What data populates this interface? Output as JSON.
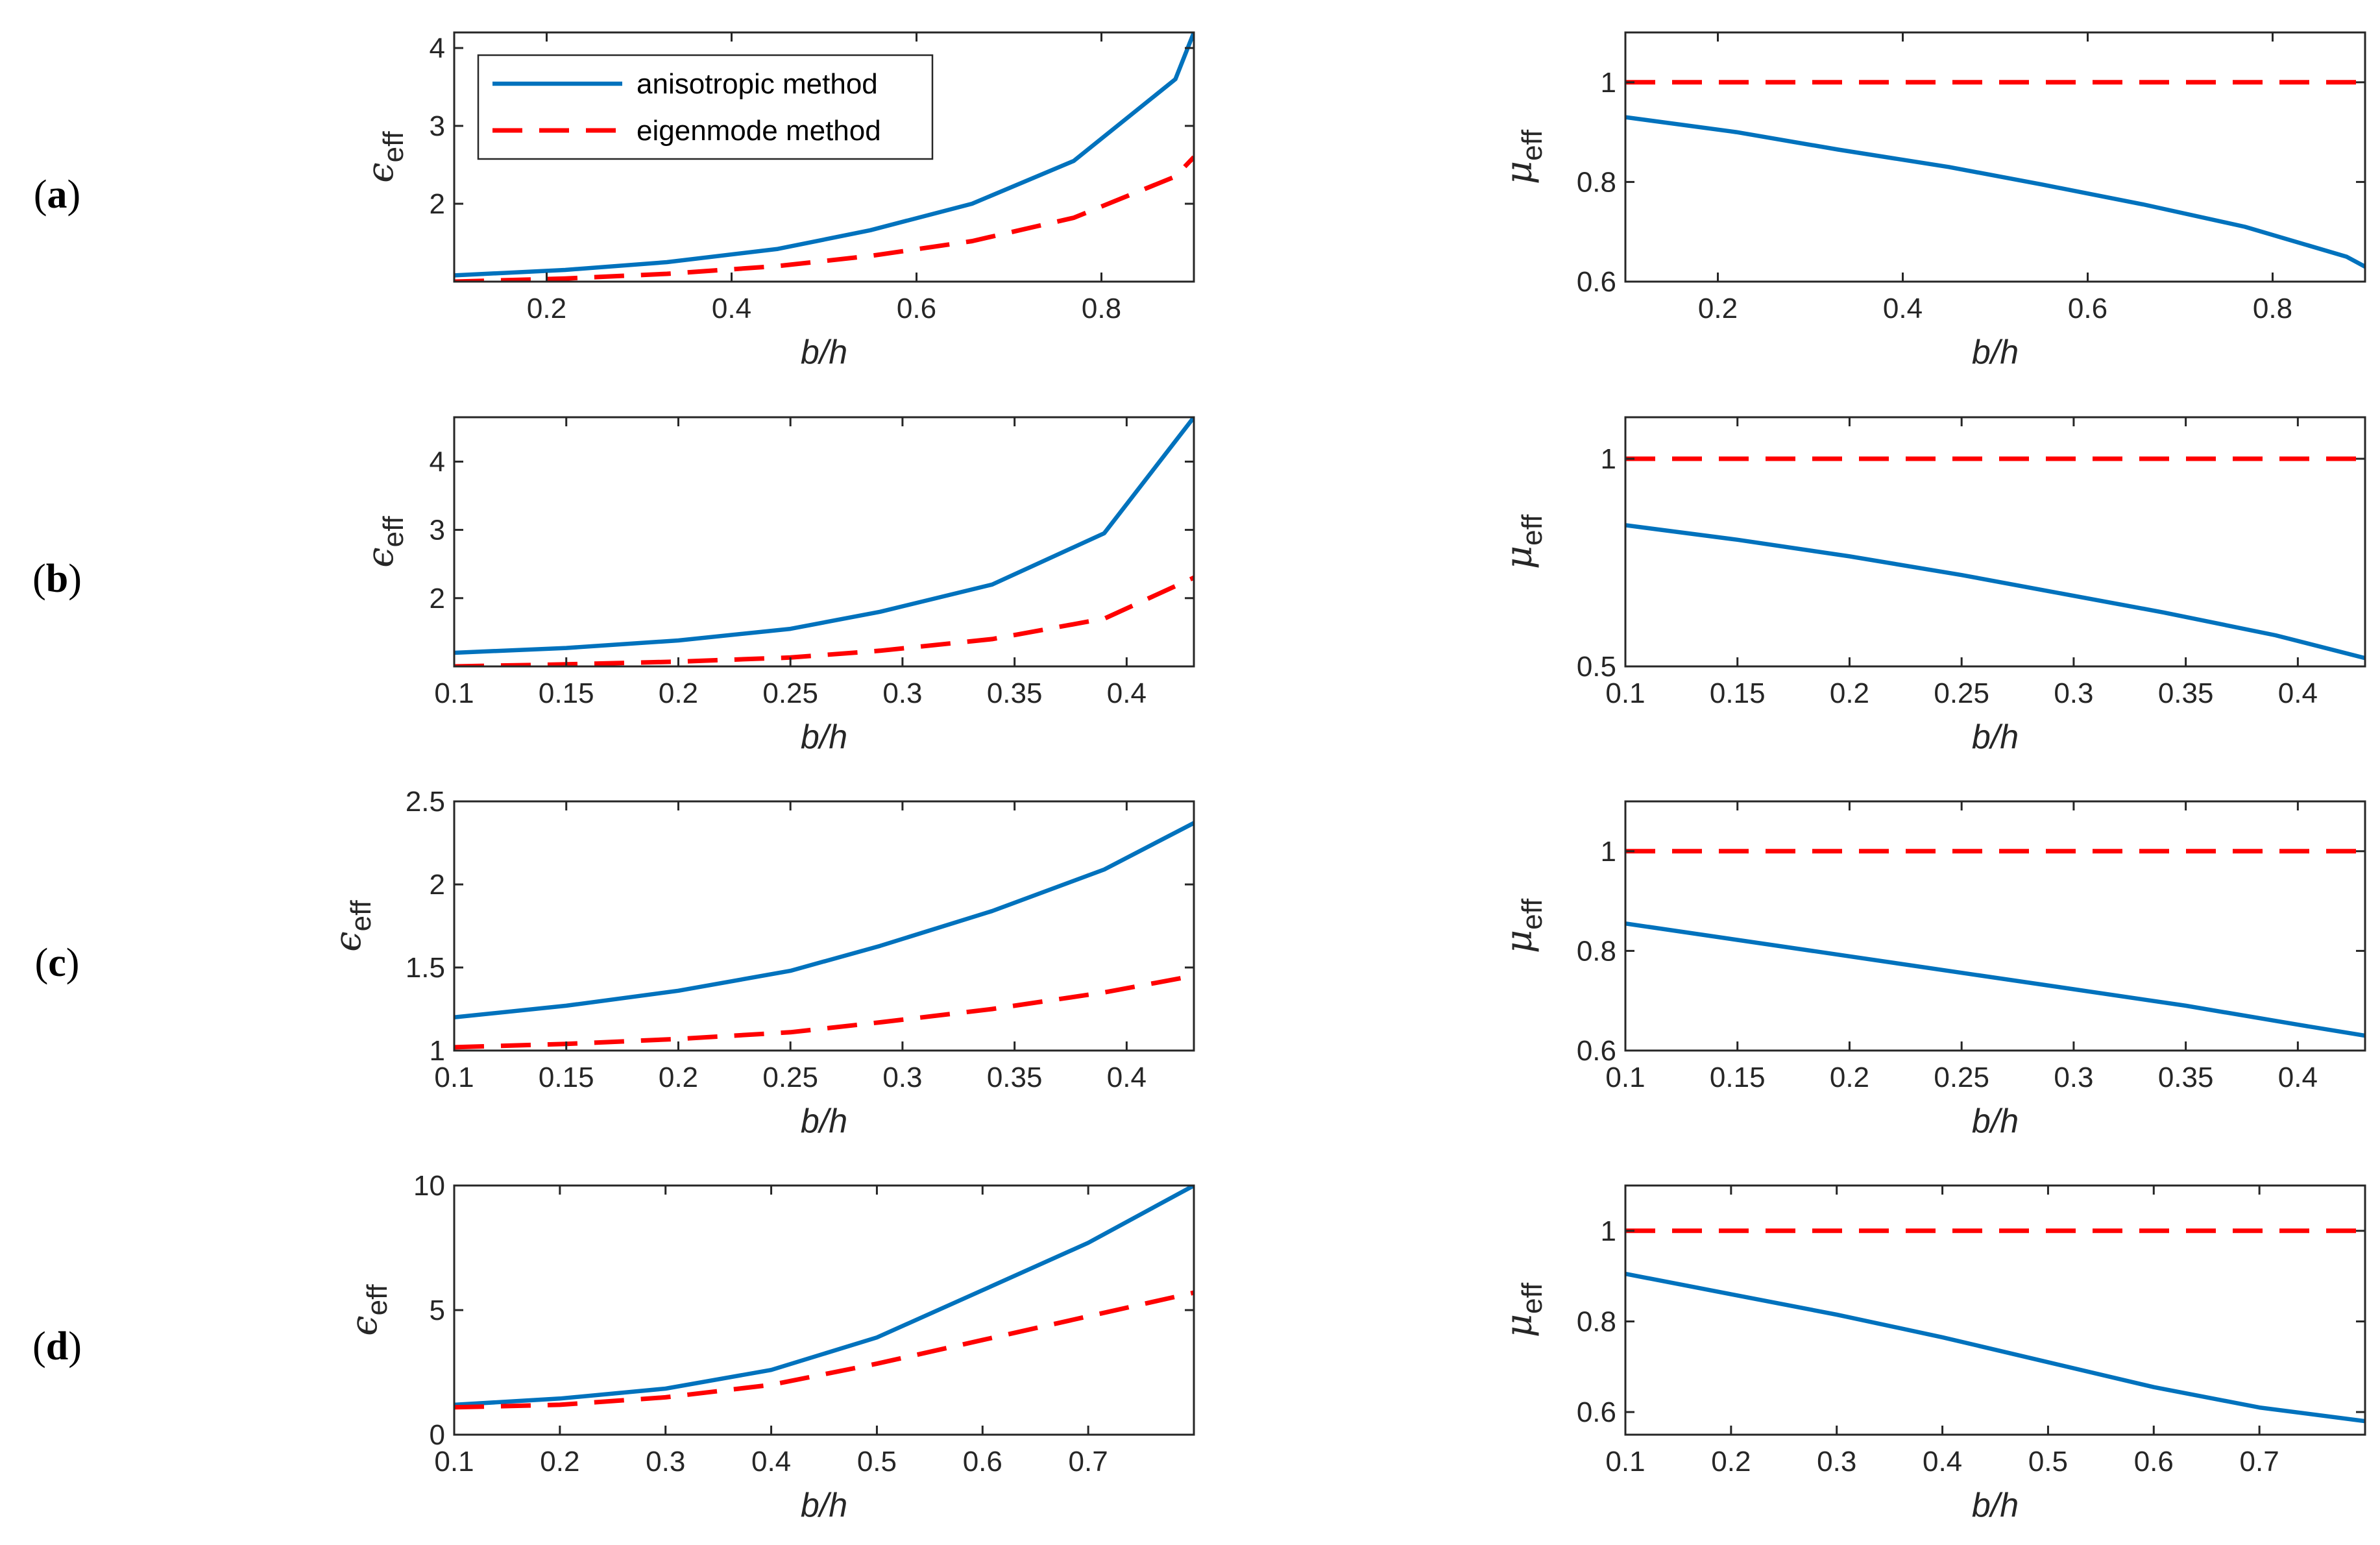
{
  "figure": {
    "panel_labels": [
      "(a)",
      "(b)",
      "(c)",
      "(d)"
    ],
    "legend": {
      "entries": [
        "anisotropic method",
        "eigenmode method"
      ]
    },
    "colors": {
      "anisotropic": "#0072BD",
      "eigenmode": "#FF0000"
    }
  },
  "chart_data": [
    {
      "id": "a-eps",
      "type": "line",
      "row": "(a)",
      "xlabel": "b/h",
      "ylabel_main": "ϵ",
      "ylabel_sub": "eff",
      "xlim": [
        0.1,
        0.9
      ],
      "ylim": [
        1,
        4.2
      ],
      "xticks": [
        "0.2",
        "0.4",
        "0.6",
        "0.8"
      ],
      "xtick_values": [
        0.2,
        0.4,
        0.6,
        0.8
      ],
      "yticks": [
        "2",
        "3",
        "4"
      ],
      "ytick_values": [
        2,
        3,
        4
      ],
      "series": [
        {
          "name": "anisotropic method",
          "x": [
            0.1,
            0.22,
            0.33,
            0.45,
            0.55,
            0.66,
            0.77,
            0.88,
            0.9
          ],
          "y": [
            1.08,
            1.15,
            1.25,
            1.42,
            1.66,
            2.0,
            2.55,
            3.6,
            4.2
          ]
        },
        {
          "name": "eigenmode method",
          "x": [
            0.1,
            0.22,
            0.33,
            0.45,
            0.55,
            0.66,
            0.77,
            0.88,
            0.9
          ],
          "y": [
            1.0,
            1.04,
            1.1,
            1.2,
            1.33,
            1.52,
            1.82,
            2.35,
            2.6
          ]
        }
      ]
    },
    {
      "id": "a-mu",
      "type": "line",
      "row": "(a)",
      "xlabel": "b/h",
      "ylabel_main": "μ",
      "ylabel_sub": "eff",
      "xlim": [
        0.1,
        0.9
      ],
      "ylim": [
        0.6,
        1.1
      ],
      "xticks": [
        "0.2",
        "0.4",
        "0.6",
        "0.8"
      ],
      "xtick_values": [
        0.2,
        0.4,
        0.6,
        0.8
      ],
      "yticks": [
        "0.6",
        "0.8",
        "1"
      ],
      "ytick_values": [
        0.6,
        0.8,
        1.0
      ],
      "series": [
        {
          "name": "anisotropic method",
          "x": [
            0.1,
            0.22,
            0.33,
            0.45,
            0.55,
            0.66,
            0.77,
            0.88,
            0.9
          ],
          "y": [
            0.93,
            0.9,
            0.865,
            0.83,
            0.795,
            0.755,
            0.71,
            0.65,
            0.63
          ]
        },
        {
          "name": "eigenmode method",
          "x": [
            0.1,
            0.9
          ],
          "y": [
            1.0,
            1.0
          ]
        }
      ]
    },
    {
      "id": "b-eps",
      "type": "line",
      "row": "(b)",
      "xlabel": "b/h",
      "ylabel_main": "ϵ",
      "ylabel_sub": "eff",
      "xlim": [
        0.1,
        0.43
      ],
      "ylim": [
        1,
        4.65
      ],
      "xticks": [
        "0.1",
        "0.15",
        "0.2",
        "0.25",
        "0.3",
        "0.35",
        "0.4"
      ],
      "xtick_values": [
        0.1,
        0.15,
        0.2,
        0.25,
        0.3,
        0.35,
        0.4
      ],
      "yticks": [
        "2",
        "3",
        "4"
      ],
      "ytick_values": [
        2,
        3,
        4
      ],
      "series": [
        {
          "name": "anisotropic method",
          "x": [
            0.1,
            0.15,
            0.2,
            0.25,
            0.29,
            0.34,
            0.39,
            0.43
          ],
          "y": [
            1.2,
            1.27,
            1.38,
            1.55,
            1.8,
            2.2,
            2.95,
            4.65
          ]
        },
        {
          "name": "eigenmode method",
          "x": [
            0.1,
            0.15,
            0.2,
            0.25,
            0.29,
            0.34,
            0.39,
            0.43
          ],
          "y": [
            1.0,
            1.03,
            1.07,
            1.13,
            1.23,
            1.4,
            1.7,
            2.3
          ]
        }
      ]
    },
    {
      "id": "b-mu",
      "type": "line",
      "row": "(b)",
      "xlabel": "b/h",
      "ylabel_main": "μ",
      "ylabel_sub": "eff",
      "xlim": [
        0.1,
        0.43
      ],
      "ylim": [
        0.5,
        1.1
      ],
      "xticks": [
        "0.1",
        "0.15",
        "0.2",
        "0.25",
        "0.3",
        "0.35",
        "0.4"
      ],
      "xtick_values": [
        0.1,
        0.15,
        0.2,
        0.25,
        0.3,
        0.35,
        0.4
      ],
      "yticks": [
        "0.5",
        "1"
      ],
      "ytick_values": [
        0.5,
        1.0
      ],
      "series": [
        {
          "name": "anisotropic method",
          "x": [
            0.1,
            0.15,
            0.2,
            0.25,
            0.29,
            0.34,
            0.39,
            0.43
          ],
          "y": [
            0.84,
            0.805,
            0.765,
            0.72,
            0.68,
            0.63,
            0.575,
            0.52
          ]
        },
        {
          "name": "eigenmode method",
          "x": [
            0.1,
            0.43
          ],
          "y": [
            1.0,
            1.0
          ]
        }
      ]
    },
    {
      "id": "c-eps",
      "type": "line",
      "row": "(c)",
      "xlabel": "b/h",
      "ylabel_main": "ϵ",
      "ylabel_sub": "eff",
      "xlim": [
        0.1,
        0.43
      ],
      "ylim": [
        1,
        2.5
      ],
      "xticks": [
        "0.1",
        "0.15",
        "0.2",
        "0.25",
        "0.3",
        "0.35",
        "0.4"
      ],
      "xtick_values": [
        0.1,
        0.15,
        0.2,
        0.25,
        0.3,
        0.35,
        0.4
      ],
      "yticks": [
        "1",
        "1.5",
        "2",
        "2.5"
      ],
      "ytick_values": [
        1,
        1.5,
        2,
        2.5
      ],
      "series": [
        {
          "name": "anisotropic method",
          "x": [
            0.1,
            0.15,
            0.2,
            0.25,
            0.29,
            0.34,
            0.39,
            0.43
          ],
          "y": [
            1.2,
            1.27,
            1.36,
            1.48,
            1.63,
            1.84,
            2.09,
            2.37
          ]
        },
        {
          "name": "eigenmode method",
          "x": [
            0.1,
            0.15,
            0.2,
            0.25,
            0.29,
            0.34,
            0.39,
            0.43
          ],
          "y": [
            1.02,
            1.04,
            1.07,
            1.11,
            1.17,
            1.25,
            1.35,
            1.45
          ]
        }
      ]
    },
    {
      "id": "c-mu",
      "type": "line",
      "row": "(c)",
      "xlabel": "b/h",
      "ylabel_main": "μ",
      "ylabel_sub": "eff",
      "xlim": [
        0.1,
        0.43
      ],
      "ylim": [
        0.6,
        1.1
      ],
      "xticks": [
        "0.1",
        "0.15",
        "0.2",
        "0.25",
        "0.3",
        "0.35",
        "0.4"
      ],
      "xtick_values": [
        0.1,
        0.15,
        0.2,
        0.25,
        0.3,
        0.35,
        0.4
      ],
      "yticks": [
        "0.6",
        "0.8",
        "1"
      ],
      "ytick_values": [
        0.6,
        0.8,
        1.0
      ],
      "series": [
        {
          "name": "anisotropic method",
          "x": [
            0.1,
            0.15,
            0.2,
            0.25,
            0.3,
            0.35,
            0.4,
            0.43
          ],
          "y": [
            0.855,
            0.822,
            0.789,
            0.756,
            0.723,
            0.69,
            0.652,
            0.63
          ]
        },
        {
          "name": "eigenmode method",
          "x": [
            0.1,
            0.43
          ],
          "y": [
            1.0,
            1.0
          ]
        }
      ]
    },
    {
      "id": "d-eps",
      "type": "line",
      "row": "(d)",
      "xlabel": "b/h",
      "ylabel_main": "ϵ",
      "ylabel_sub": "eff",
      "xlim": [
        0.1,
        0.8
      ],
      "ylim": [
        0,
        10
      ],
      "xticks": [
        "0.1",
        "0.2",
        "0.3",
        "0.4",
        "0.5",
        "0.6",
        "0.7"
      ],
      "xtick_values": [
        0.1,
        0.2,
        0.3,
        0.4,
        0.5,
        0.6,
        0.7
      ],
      "yticks": [
        "0",
        "5",
        "10"
      ],
      "ytick_values": [
        0,
        5,
        10
      ],
      "series": [
        {
          "name": "anisotropic method",
          "x": [
            0.1,
            0.2,
            0.3,
            0.4,
            0.5,
            0.6,
            0.7,
            0.8
          ],
          "y": [
            1.2,
            1.45,
            1.85,
            2.6,
            3.9,
            5.8,
            7.7,
            10.0
          ]
        },
        {
          "name": "eigenmode method",
          "x": [
            0.1,
            0.2,
            0.3,
            0.4,
            0.5,
            0.6,
            0.7,
            0.8
          ],
          "y": [
            1.1,
            1.2,
            1.5,
            2.0,
            2.85,
            3.8,
            4.75,
            5.7
          ]
        }
      ]
    },
    {
      "id": "d-mu",
      "type": "line",
      "row": "(d)",
      "xlabel": "b/h",
      "ylabel_main": "μ",
      "ylabel_sub": "eff",
      "xlim": [
        0.1,
        0.8
      ],
      "ylim": [
        0.55,
        1.1
      ],
      "xticks": [
        "0.1",
        "0.2",
        "0.3",
        "0.4",
        "0.5",
        "0.6",
        "0.7"
      ],
      "xtick_values": [
        0.1,
        0.2,
        0.3,
        0.4,
        0.5,
        0.6,
        0.7
      ],
      "yticks": [
        "0.6",
        "0.8",
        "1"
      ],
      "ytick_values": [
        0.6,
        0.8,
        1.0
      ],
      "series": [
        {
          "name": "anisotropic method",
          "x": [
            0.1,
            0.2,
            0.3,
            0.4,
            0.5,
            0.6,
            0.7,
            0.8
          ],
          "y": [
            0.905,
            0.86,
            0.815,
            0.765,
            0.71,
            0.655,
            0.61,
            0.58
          ]
        },
        {
          "name": "eigenmode method",
          "x": [
            0.1,
            0.8
          ],
          "y": [
            1.0,
            1.0
          ]
        }
      ]
    }
  ]
}
